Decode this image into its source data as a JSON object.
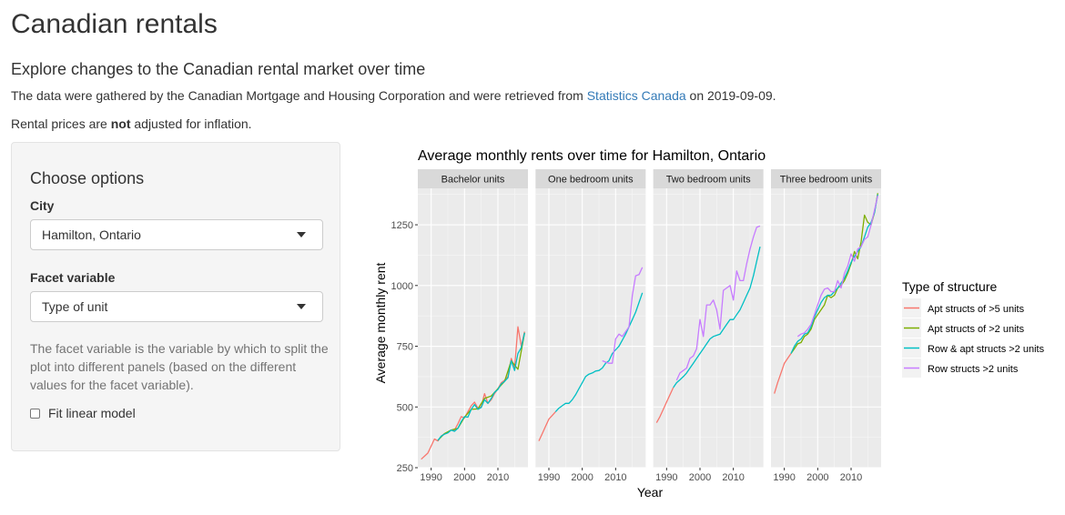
{
  "header": {
    "title": "Canadian rentals",
    "subtitle": "Explore changes to the Canadian rental market over time",
    "paragraph1_before": "The data were gathered by the Canadian Mortgage and Housing Corporation and were retrieved from ",
    "paragraph1_link": "Statistics Canada",
    "paragraph1_after": " on 2019-09-09.",
    "paragraph2_before": "Rental prices are ",
    "paragraph2_bold": "not",
    "paragraph2_after": " adjusted for inflation."
  },
  "sidebar": {
    "title": "Choose options",
    "city_label": "City",
    "city_value": "Hamilton, Ontario",
    "facet_label": "Facet variable",
    "facet_value": "Type of unit",
    "help_text": "The facet variable is the variable by which to split the plot into different panels (based on the different values for the facet variable).",
    "checkbox_label": "Fit linear model",
    "checkbox_checked": false
  },
  "chart_data": {
    "type": "line",
    "title": "Average monthly rents over time for Hamilton, Ontario",
    "xlabel": "Year",
    "ylabel": "Average monthly rent",
    "xlim": [
      1986,
      2019
    ],
    "ylim": [
      250,
      1400
    ],
    "xticks": [
      1990,
      2000,
      2010
    ],
    "yticks": [
      250,
      500,
      750,
      1000,
      1250
    ],
    "grid": true,
    "legend_title": "Type of structure",
    "legend_position": "right",
    "series_legend": [
      {
        "name": "Apt structs of >5 units",
        "color": "#F8766D"
      },
      {
        "name": "Apt structs of >2 units",
        "color": "#7CAE00"
      },
      {
        "name": "Row & apt structs >2 units",
        "color": "#00BFC4"
      },
      {
        "name": "Row structs >2 units",
        "color": "#C77CFF"
      }
    ],
    "panels": [
      {
        "name": "Bachelor units",
        "series": [
          {
            "name": "Apt structs of >5 units",
            "x": [
              1987,
              1989,
              1991,
              1992,
              1993,
              1994,
              1995,
              1996,
              1997,
              1998,
              1999,
              2000,
              2001,
              2002,
              2003,
              2004,
              2005,
              2006,
              2007,
              2008,
              2009,
              2010,
              2011,
              2012,
              2013,
              2014,
              2015,
              2016,
              2017,
              2018
            ],
            "y": [
              285,
              310,
              368,
              360,
              380,
              390,
              395,
              405,
              405,
              430,
              460,
              455,
              480,
              505,
              520,
              495,
              500,
              555,
              515,
              530,
              555,
              575,
              600,
              610,
              625,
              700,
              660,
              830,
              750,
              810
            ]
          },
          {
            "name": "Apt structs of >2 units",
            "x": [
              1992,
              1994,
              1996,
              1998,
              2000,
              2002,
              2004,
              2006,
              2008,
              2010,
              2012,
              2014,
              2016,
              2018
            ],
            "y": [
              362,
              390,
              405,
              412,
              458,
              490,
              492,
              535,
              545,
              575,
              605,
              690,
              655,
              805
            ]
          },
          {
            "name": "Row & apt structs >2 units",
            "x": [
              1992,
              1993,
              1994,
              1995,
              1996,
              1997,
              1998,
              1999,
              2000,
              2001,
              2002,
              2003,
              2004,
              2005,
              2006,
              2007,
              2008,
              2009,
              2010,
              2011,
              2012,
              2013,
              2014,
              2015,
              2016,
              2017,
              2018
            ],
            "y": [
              362,
              380,
              388,
              393,
              405,
              400,
              412,
              440,
              460,
              458,
              490,
              510,
              490,
              498,
              530,
              515,
              535,
              560,
              572,
              595,
              605,
              620,
              690,
              650,
              720,
              745,
              805
            ]
          }
        ]
      },
      {
        "name": "One bedroom units",
        "series": [
          {
            "name": "Apt structs of >5 units",
            "x": [
              1987,
              1988,
              1989,
              1990,
              1991,
              1992
            ],
            "y": [
              360,
              390,
              420,
              450,
              465,
              480
            ]
          },
          {
            "name": "Row & apt structs >2 units",
            "x": [
              1992,
              1993,
              1994,
              1995,
              1996,
              1997,
              1998,
              1999,
              2000,
              2001,
              2002,
              2003,
              2004,
              2005,
              2006,
              2007,
              2008,
              2009,
              2010,
              2011,
              2012,
              2013,
              2014,
              2015,
              2016,
              2017,
              2018
            ],
            "y": [
              480,
              495,
              505,
              515,
              515,
              530,
              550,
              575,
              600,
              625,
              635,
              640,
              648,
              650,
              660,
              680,
              690,
              720,
              735,
              750,
              775,
              800,
              830,
              860,
              890,
              930,
              970
            ]
          },
          {
            "name": "Row structs >2 units",
            "x": [
              2006,
              2007,
              2008,
              2009,
              2010,
              2011,
              2012,
              2013,
              2014,
              2015,
              2016,
              2017,
              2018
            ],
            "y": [
              690,
              685,
              680,
              680,
              780,
              800,
              790,
              810,
              830,
              960,
              1040,
              1045,
              1075
            ]
          }
        ]
      },
      {
        "name": "Two bedroom units",
        "series": [
          {
            "name": "Apt structs of >5 units",
            "x": [
              1987,
              1988,
              1989,
              1990,
              1991,
              1992
            ],
            "y": [
              435,
              460,
              490,
              520,
              550,
              580
            ]
          },
          {
            "name": "Row & apt structs >2 units",
            "x": [
              1992,
              1993,
              1994,
              1995,
              1996,
              1997,
              1998,
              1999,
              2000,
              2001,
              2002,
              2003,
              2004,
              2005,
              2006,
              2007,
              2008,
              2009,
              2010,
              2011,
              2012,
              2013,
              2014,
              2015,
              2016,
              2017,
              2018
            ],
            "y": [
              580,
              600,
              612,
              625,
              640,
              660,
              680,
              700,
              720,
              740,
              760,
              780,
              790,
              795,
              800,
              820,
              840,
              860,
              860,
              880,
              900,
              930,
              960,
              990,
              1040,
              1100,
              1160
            ]
          },
          {
            "name": "Row structs >2 units",
            "x": [
              1993,
              1994,
              1995,
              1996,
              1997,
              1998,
              1999,
              2000,
              2001,
              2002,
              2003,
              2004,
              2005,
              2006,
              2007,
              2008,
              2009,
              2010,
              2011,
              2012,
              2013,
              2014,
              2015,
              2016,
              2017,
              2018
            ],
            "y": [
              610,
              640,
              650,
              660,
              700,
              710,
              740,
              860,
              790,
              920,
              920,
              940,
              900,
              820,
              980,
              990,
              1000,
              940,
              1060,
              1020,
              1020,
              1090,
              1150,
              1200,
              1240,
              1245
            ]
          }
        ]
      },
      {
        "name": "Three bedroom units",
        "series": [
          {
            "name": "Apt structs of >5 units",
            "x": [
              1987,
              1988,
              1989,
              1990,
              1991,
              1992
            ],
            "y": [
              555,
              600,
              640,
              680,
              700,
              720
            ]
          },
          {
            "name": "Apt structs of >2 units",
            "x": [
              1992,
              1993,
              1994,
              1995,
              1996,
              1997,
              1998,
              1999,
              2000,
              2001,
              2002,
              2003,
              2004,
              2005,
              2006,
              2007,
              2008,
              2009,
              2010,
              2011,
              2012,
              2013,
              2014,
              2015,
              2016,
              2017,
              2018
            ],
            "y": [
              720,
              740,
              760,
              765,
              790,
              800,
              820,
              860,
              880,
              900,
              920,
              960,
              950,
              960,
              990,
              1000,
              1020,
              1050,
              1090,
              1140,
              1110,
              1180,
              1290,
              1260,
              1250,
              1300,
              1380
            ]
          },
          {
            "name": "Row & apt structs >2 units",
            "x": [
              1992,
              1993,
              1994,
              1995,
              1996,
              1997,
              1998,
              1999,
              2000,
              2001,
              2002,
              2003,
              2004,
              2005,
              2006,
              2007,
              2008,
              2009,
              2010,
              2011,
              2012,
              2013,
              2014,
              2015,
              2016,
              2017,
              2018
            ],
            "y": [
              720,
              750,
              770,
              780,
              800,
              805,
              830,
              870,
              900,
              930,
              950,
              960,
              960,
              975,
              990,
              1010,
              1030,
              1060,
              1095,
              1120,
              1140,
              1160,
              1200,
              1240,
              1260,
              1300,
              1375
            ]
          },
          {
            "name": "Row structs >2 units",
            "x": [
              1994,
              1995,
              1996,
              1997,
              1998,
              1999,
              2000,
              2001,
              2002,
              2003,
              2004,
              2005,
              2006,
              2007,
              2008,
              2009,
              2010,
              2011,
              2012,
              2013,
              2014,
              2015,
              2016,
              2017,
              2018
            ],
            "y": [
              790,
              800,
              805,
              820,
              840,
              880,
              920,
              960,
              985,
              990,
              975,
              975,
              1020,
              990,
              1050,
              1080,
              1130,
              1100,
              1150,
              1160,
              1190,
              1200,
              1250,
              1310,
              1370
            ]
          }
        ]
      }
    ]
  }
}
